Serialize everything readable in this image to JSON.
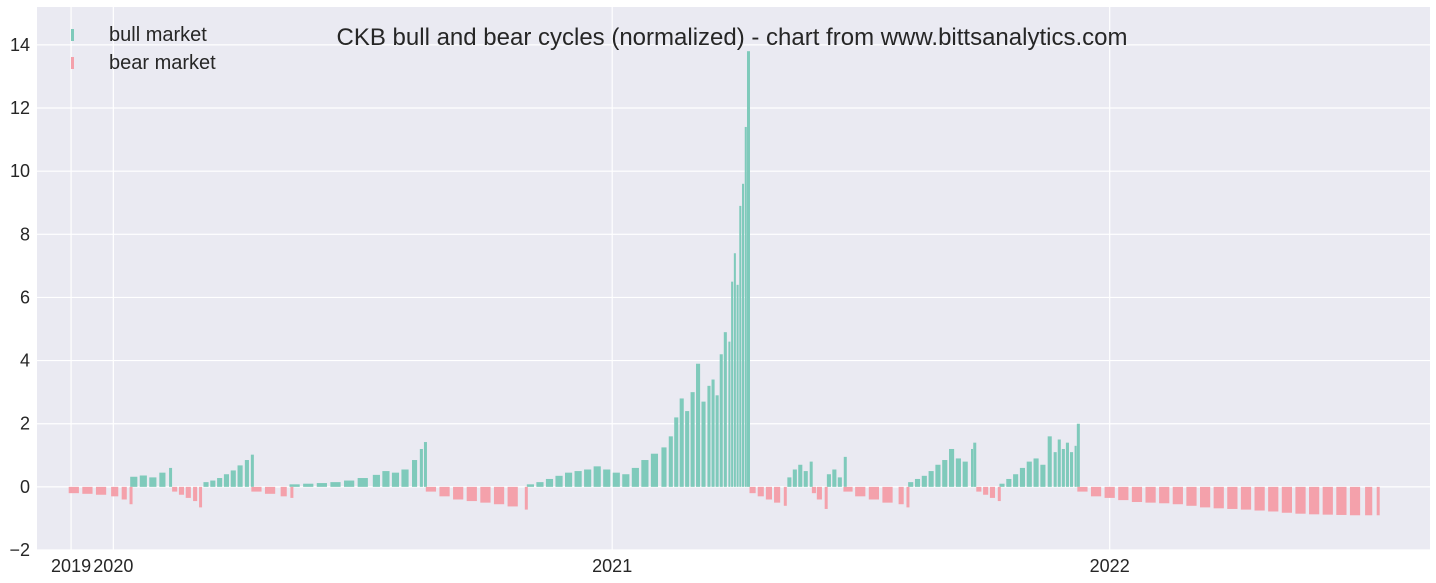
{
  "chart_data": {
    "type": "bar",
    "title": "CKB bull and bear cycles (normalized)  - chart from www.bittsanalytics.com",
    "xlabel": "",
    "ylabel": "",
    "xlim": [
      "2019-11-06",
      "2022-08-24"
    ],
    "ylim": [
      -2,
      15.2
    ],
    "yticks": [
      -2,
      0,
      2,
      4,
      6,
      8,
      10,
      12,
      14
    ],
    "xticks": [
      {
        "date": "2019-12-01",
        "label": "2019"
      },
      {
        "date": "2020-01-01",
        "label": "2020"
      },
      {
        "date": "2021-01-01",
        "label": "2021"
      },
      {
        "date": "2022-01-01",
        "label": "2022"
      }
    ],
    "grid": true,
    "legend_position": "top-left",
    "series": [
      {
        "name": "bull market",
        "color": "#7fcabb",
        "points": [
          [
            "2020-01-16",
            0.32
          ],
          [
            "2020-01-23",
            0.36
          ],
          [
            "2020-01-30",
            0.3
          ],
          [
            "2020-02-06",
            0.45
          ],
          [
            "2020-02-12",
            0.6
          ],
          [
            "2020-03-09",
            0.15
          ],
          [
            "2020-03-14",
            0.2
          ],
          [
            "2020-03-19",
            0.28
          ],
          [
            "2020-03-24",
            0.4
          ],
          [
            "2020-03-29",
            0.52
          ],
          [
            "2020-04-03",
            0.68
          ],
          [
            "2020-04-08",
            0.85
          ],
          [
            "2020-04-12",
            1.02
          ],
          [
            "2020-05-13",
            0.08
          ],
          [
            "2020-05-23",
            0.1
          ],
          [
            "2020-06-02",
            0.12
          ],
          [
            "2020-06-12",
            0.15
          ],
          [
            "2020-06-22",
            0.2
          ],
          [
            "2020-07-02",
            0.28
          ],
          [
            "2020-07-12",
            0.38
          ],
          [
            "2020-07-19",
            0.5
          ],
          [
            "2020-07-26",
            0.45
          ],
          [
            "2020-08-02",
            0.55
          ],
          [
            "2020-08-09",
            0.85
          ],
          [
            "2020-08-14",
            1.2
          ],
          [
            "2020-08-17",
            1.42
          ],
          [
            "2020-11-02",
            0.08
          ],
          [
            "2020-11-09",
            0.15
          ],
          [
            "2020-11-16",
            0.25
          ],
          [
            "2020-11-23",
            0.35
          ],
          [
            "2020-11-30",
            0.45
          ],
          [
            "2020-12-07",
            0.5
          ],
          [
            "2020-12-14",
            0.55
          ],
          [
            "2020-12-21",
            0.65
          ],
          [
            "2020-12-28",
            0.55
          ],
          [
            "2021-01-04",
            0.45
          ],
          [
            "2021-01-11",
            0.4
          ],
          [
            "2021-01-18",
            0.6
          ],
          [
            "2021-01-25",
            0.85
          ],
          [
            "2021-02-01",
            1.05
          ],
          [
            "2021-02-08",
            1.25
          ],
          [
            "2021-02-13",
            1.6
          ],
          [
            "2021-02-17",
            2.2
          ],
          [
            "2021-02-21",
            2.8
          ],
          [
            "2021-02-25",
            2.4
          ],
          [
            "2021-03-01",
            3.0
          ],
          [
            "2021-03-05",
            3.9
          ],
          [
            "2021-03-09",
            2.7
          ],
          [
            "2021-03-13",
            3.2
          ],
          [
            "2021-03-16",
            3.4
          ],
          [
            "2021-03-19",
            2.9
          ],
          [
            "2021-03-22",
            4.2
          ],
          [
            "2021-03-25",
            4.9
          ],
          [
            "2021-03-28",
            4.6
          ],
          [
            "2021-03-30",
            6.5
          ],
          [
            "2021-04-01",
            7.4
          ],
          [
            "2021-04-03",
            6.4
          ],
          [
            "2021-04-05",
            8.9
          ],
          [
            "2021-04-07",
            9.6
          ],
          [
            "2021-04-09",
            11.4
          ],
          [
            "2021-04-11",
            13.8
          ],
          [
            "2021-05-11",
            0.3
          ],
          [
            "2021-05-15",
            0.55
          ],
          [
            "2021-05-19",
            0.7
          ],
          [
            "2021-05-23",
            0.5
          ],
          [
            "2021-05-27",
            0.8
          ],
          [
            "2021-06-09",
            0.4
          ],
          [
            "2021-06-13",
            0.55
          ],
          [
            "2021-06-17",
            0.3
          ],
          [
            "2021-06-21",
            0.95
          ],
          [
            "2021-08-08",
            0.15
          ],
          [
            "2021-08-13",
            0.25
          ],
          [
            "2021-08-18",
            0.35
          ],
          [
            "2021-08-23",
            0.5
          ],
          [
            "2021-08-28",
            0.7
          ],
          [
            "2021-09-02",
            0.85
          ],
          [
            "2021-09-07",
            1.2
          ],
          [
            "2021-09-12",
            0.9
          ],
          [
            "2021-09-17",
            0.8
          ],
          [
            "2021-09-22",
            1.2
          ],
          [
            "2021-09-24",
            1.4
          ],
          [
            "2021-10-14",
            0.1
          ],
          [
            "2021-10-19",
            0.25
          ],
          [
            "2021-10-24",
            0.4
          ],
          [
            "2021-10-29",
            0.6
          ],
          [
            "2021-11-03",
            0.8
          ],
          [
            "2021-11-08",
            0.9
          ],
          [
            "2021-11-13",
            0.7
          ],
          [
            "2021-11-18",
            1.6
          ],
          [
            "2021-11-22",
            1.1
          ],
          [
            "2021-11-25",
            1.5
          ],
          [
            "2021-11-28",
            1.2
          ],
          [
            "2021-12-01",
            1.4
          ],
          [
            "2021-12-04",
            1.1
          ],
          [
            "2021-12-07",
            1.3
          ],
          [
            "2021-12-09",
            2.0
          ]
        ]
      },
      {
        "name": "bear market",
        "color": "#f4a1ab",
        "points": [
          [
            "2019-12-03",
            -0.2
          ],
          [
            "2019-12-13",
            -0.22
          ],
          [
            "2019-12-23",
            -0.25
          ],
          [
            "2020-01-02",
            -0.3
          ],
          [
            "2020-01-09",
            -0.4
          ],
          [
            "2020-01-14",
            -0.55
          ],
          [
            "2020-02-15",
            -0.15
          ],
          [
            "2020-02-20",
            -0.25
          ],
          [
            "2020-02-25",
            -0.35
          ],
          [
            "2020-03-01",
            -0.45
          ],
          [
            "2020-03-05",
            -0.65
          ],
          [
            "2020-04-15",
            -0.15
          ],
          [
            "2020-04-25",
            -0.22
          ],
          [
            "2020-05-05",
            -0.3
          ],
          [
            "2020-05-11",
            -0.35
          ],
          [
            "2020-08-21",
            -0.15
          ],
          [
            "2020-08-31",
            -0.3
          ],
          [
            "2020-09-10",
            -0.4
          ],
          [
            "2020-09-20",
            -0.45
          ],
          [
            "2020-09-30",
            -0.5
          ],
          [
            "2020-10-10",
            -0.55
          ],
          [
            "2020-10-20",
            -0.62
          ],
          [
            "2020-10-30",
            -0.72
          ],
          [
            "2021-04-14",
            -0.2
          ],
          [
            "2021-04-20",
            -0.3
          ],
          [
            "2021-04-26",
            -0.4
          ],
          [
            "2021-05-02",
            -0.5
          ],
          [
            "2021-05-08",
            -0.6
          ],
          [
            "2021-05-29",
            -0.2
          ],
          [
            "2021-06-02",
            -0.4
          ],
          [
            "2021-06-07",
            -0.7
          ],
          [
            "2021-06-23",
            -0.15
          ],
          [
            "2021-07-02",
            -0.3
          ],
          [
            "2021-07-12",
            -0.4
          ],
          [
            "2021-07-22",
            -0.5
          ],
          [
            "2021-08-01",
            -0.55
          ],
          [
            "2021-08-06",
            -0.65
          ],
          [
            "2021-09-27",
            -0.15
          ],
          [
            "2021-10-02",
            -0.25
          ],
          [
            "2021-10-07",
            -0.35
          ],
          [
            "2021-10-12",
            -0.45
          ],
          [
            "2021-12-12",
            -0.15
          ],
          [
            "2021-12-22",
            -0.3
          ],
          [
            "2022-01-01",
            -0.35
          ],
          [
            "2022-01-11",
            -0.42
          ],
          [
            "2022-01-21",
            -0.48
          ],
          [
            "2022-01-31",
            -0.5
          ],
          [
            "2022-02-10",
            -0.52
          ],
          [
            "2022-02-20",
            -0.55
          ],
          [
            "2022-03-02",
            -0.6
          ],
          [
            "2022-03-12",
            -0.65
          ],
          [
            "2022-03-22",
            -0.68
          ],
          [
            "2022-04-01",
            -0.7
          ],
          [
            "2022-04-11",
            -0.72
          ],
          [
            "2022-04-21",
            -0.75
          ],
          [
            "2022-05-01",
            -0.78
          ],
          [
            "2022-05-11",
            -0.82
          ],
          [
            "2022-05-21",
            -0.85
          ],
          [
            "2022-05-31",
            -0.87
          ],
          [
            "2022-06-10",
            -0.88
          ],
          [
            "2022-06-20",
            -0.89
          ],
          [
            "2022-06-30",
            -0.9
          ],
          [
            "2022-07-10",
            -0.9
          ],
          [
            "2022-07-17",
            -0.9
          ]
        ]
      }
    ]
  }
}
